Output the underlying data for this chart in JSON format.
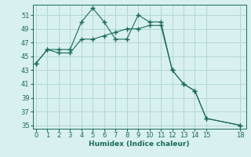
{
  "line1_x": [
    0,
    1,
    2,
    3,
    4,
    5,
    6,
    7,
    8,
    9,
    10,
    11,
    12,
    13,
    14,
    15,
    18
  ],
  "line1_y": [
    44,
    46,
    46,
    46,
    50,
    52,
    50,
    47.5,
    47.5,
    51,
    50,
    50,
    43,
    41,
    40,
    36,
    35
  ],
  "line2_x": [
    0,
    1,
    2,
    3,
    4,
    5,
    6,
    7,
    8,
    9,
    10,
    11,
    12,
    13,
    14,
    15,
    18
  ],
  "line2_y": [
    44,
    46,
    45.5,
    45.5,
    47.5,
    47.5,
    48,
    48.5,
    49,
    49,
    49.5,
    49.5,
    43,
    41,
    40,
    36,
    35
  ],
  "line_color": "#1a6b5a",
  "bg_color": "#d8f0ef",
  "grid_color": "#b0d8d8",
  "xlabel": "Humidex (Indice chaleur)",
  "yticks": [
    35,
    37,
    39,
    41,
    43,
    45,
    47,
    49,
    51
  ],
  "xticks": [
    0,
    1,
    2,
    3,
    4,
    5,
    6,
    7,
    8,
    9,
    10,
    11,
    12,
    13,
    14,
    15,
    18
  ],
  "xlim": [
    -0.3,
    18.5
  ],
  "ylim": [
    34.5,
    52.5
  ],
  "label_fontsize": 6.5,
  "tick_fontsize": 6.0
}
